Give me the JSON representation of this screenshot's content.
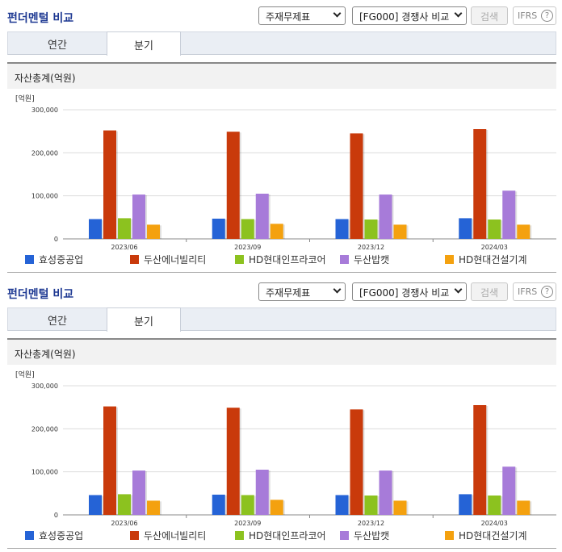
{
  "panels": [
    {
      "title": "펀더멘털 비교",
      "select_statement": "주재무제표",
      "select_compare": "[FG000] 경쟁사 비교",
      "search_label": "검색",
      "ifrs_label": "IFRS",
      "help_icon": "?",
      "tabs": [
        {
          "label": "연간"
        },
        {
          "label": "분기"
        }
      ],
      "section_title": "자산총계(억원)"
    },
    {
      "title": "펀더멘털 비교",
      "select_statement": "주재무제표",
      "select_compare": "[FG000] 경쟁사 비교",
      "search_label": "검색",
      "ifrs_label": "IFRS",
      "help_icon": "?",
      "tabs": [
        {
          "label": "연간"
        },
        {
          "label": "분기"
        }
      ],
      "section_title": "자산총계(억원)"
    }
  ],
  "colors": {
    "title": "#1f3a93",
    "s0": "#2563d6",
    "s1": "#c93a0b",
    "s2": "#8cc21f",
    "s3": "#a77bd9",
    "s4": "#f4a10f"
  },
  "chart_data": [
    {
      "type": "bar",
      "unit_label": "[억원]",
      "categories": [
        "2023/06",
        "2023/09",
        "2023/12",
        "2024/03"
      ],
      "ylim": [
        0,
        300000
      ],
      "yticks": [
        "0",
        "100,000",
        "200,000",
        "300,000"
      ],
      "grid": true,
      "legend_position": "bottom",
      "series": [
        {
          "name": "효성중공업",
          "color": "#2563d6",
          "values": [
            46000,
            47000,
            46000,
            48000
          ]
        },
        {
          "name": "두산에너빌리티",
          "color": "#c93a0b",
          "values": [
            252000,
            249000,
            245000,
            255000
          ]
        },
        {
          "name": "HD현대인프라코어",
          "color": "#8cc21f",
          "values": [
            48000,
            46000,
            45000,
            45000
          ]
        },
        {
          "name": "두산밥캣",
          "color": "#a77bd9",
          "values": [
            103000,
            105000,
            103000,
            112000
          ]
        },
        {
          "name": "HD현대건설기계",
          "color": "#f4a10f",
          "values": [
            33000,
            35000,
            33000,
            33000
          ]
        }
      ]
    },
    {
      "type": "bar",
      "unit_label": "[억원]",
      "categories": [
        "2023/06",
        "2023/09",
        "2023/12",
        "2024/03"
      ],
      "ylim": [
        0,
        300000
      ],
      "yticks": [
        "0",
        "100,000",
        "200,000",
        "300,000"
      ],
      "grid": true,
      "legend_position": "bottom",
      "series": [
        {
          "name": "효성중공업",
          "color": "#2563d6",
          "values": [
            46000,
            47000,
            46000,
            48000
          ]
        },
        {
          "name": "두산에너빌리티",
          "color": "#c93a0b",
          "values": [
            252000,
            249000,
            245000,
            255000
          ]
        },
        {
          "name": "HD현대인프라코어",
          "color": "#8cc21f",
          "values": [
            48000,
            46000,
            45000,
            45000
          ]
        },
        {
          "name": "두산밥캣",
          "color": "#a77bd9",
          "values": [
            103000,
            105000,
            103000,
            112000
          ]
        },
        {
          "name": "HD현대건설기계",
          "color": "#f4a10f",
          "values": [
            33000,
            35000,
            33000,
            33000
          ]
        }
      ]
    }
  ]
}
